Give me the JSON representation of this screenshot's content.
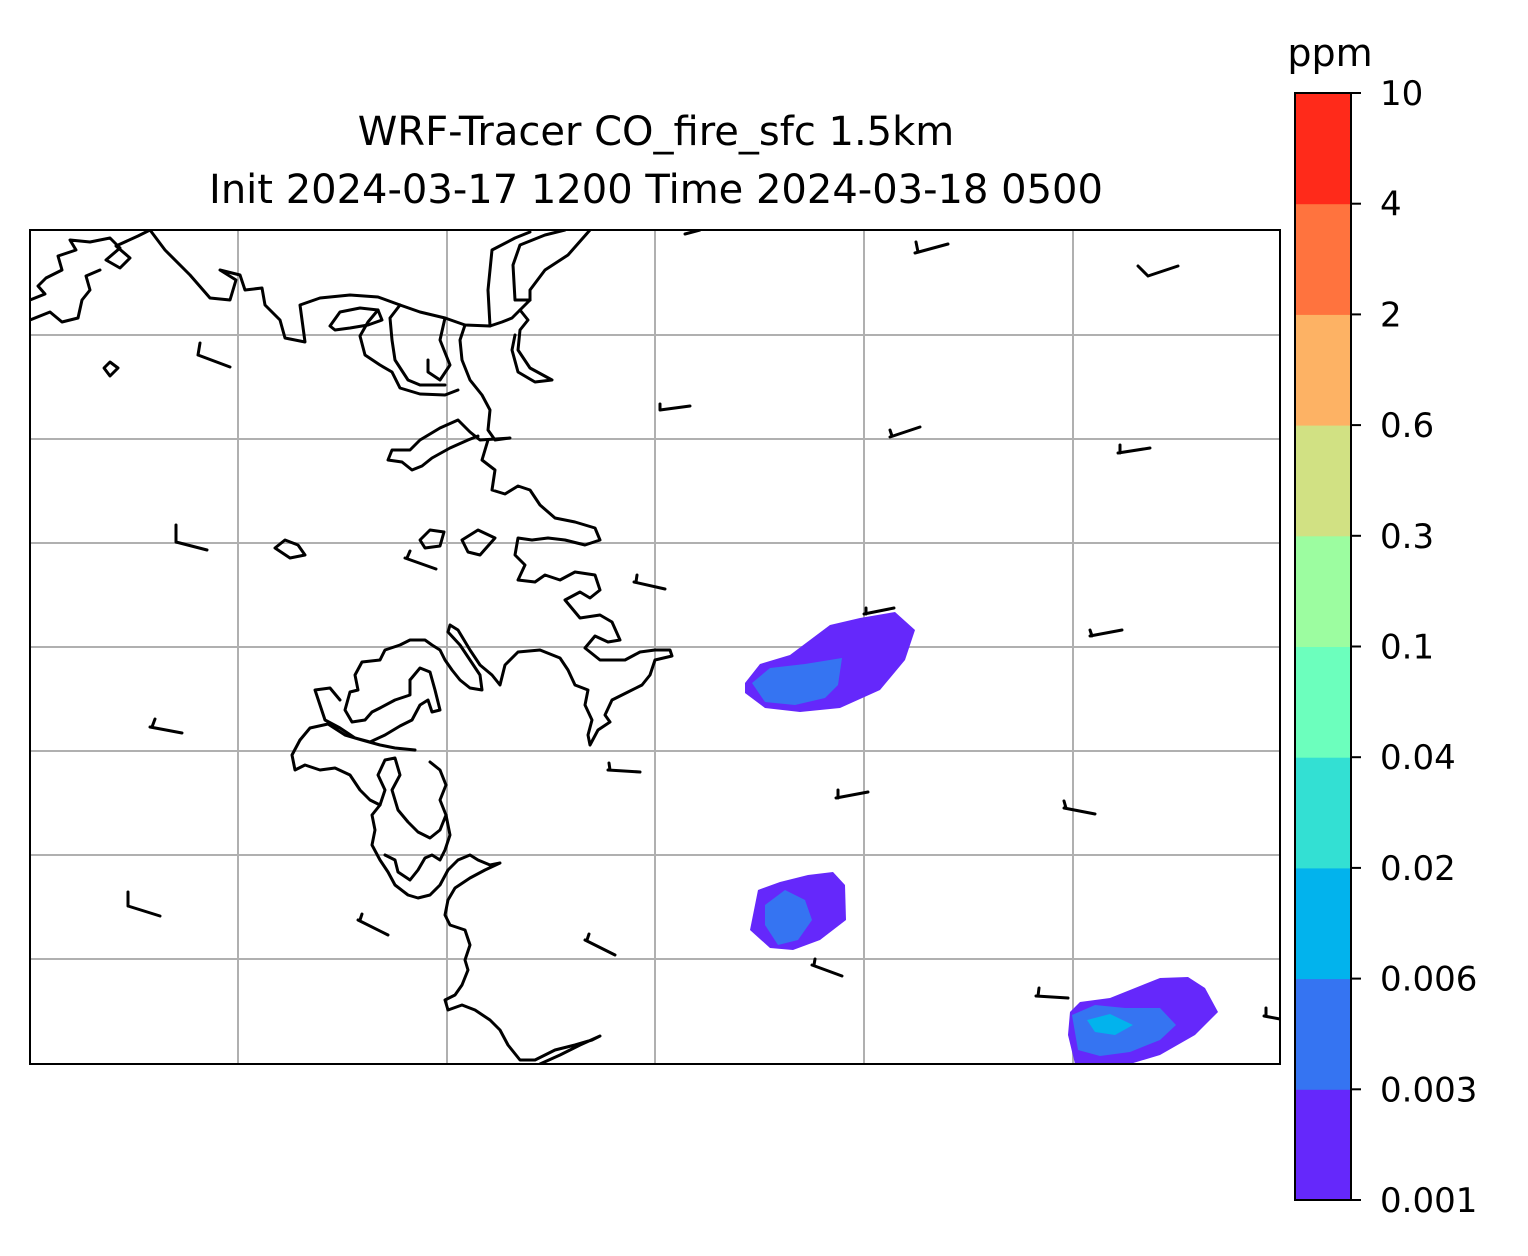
{
  "title": {
    "line1": "WRF-Tracer CO_fire_sfc 1.5km",
    "line2": "Init 2024-03-17 1200 Time 2024-03-18 0500"
  },
  "colorbar": {
    "unit": "ppm",
    "levels": [
      "0.001",
      "0.003",
      "0.006",
      "0.02",
      "0.04",
      "0.1",
      "0.3",
      "0.6",
      "2",
      "4",
      "10"
    ],
    "colors": [
      "#6528fb",
      "#3574f2",
      "#02b3ed",
      "#33e0d3",
      "#6cffbd",
      "#9cfda0",
      "#d1e183",
      "#fdb264",
      "#ff733e",
      "#ff2a1a"
    ]
  },
  "map": {
    "gridline_color": "#b0b0b0",
    "coastline_color": "#000000",
    "fire_plumes": [
      {
        "name": "plume-north",
        "max_level": "0.003-0.006 ppm"
      },
      {
        "name": "plume-middle",
        "max_level": "0.003-0.006 ppm"
      },
      {
        "name": "plume-southeast",
        "max_level": "0.006-0.02 ppm"
      }
    ]
  }
}
